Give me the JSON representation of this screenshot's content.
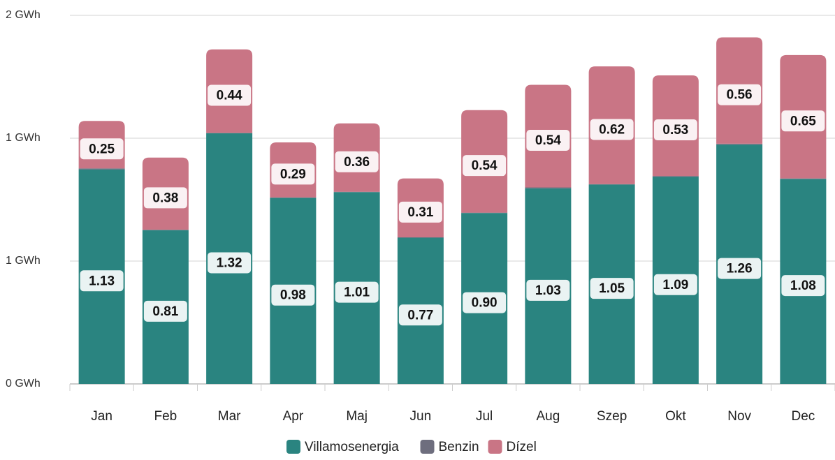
{
  "chart_data": {
    "type": "stacked_bar",
    "categories": [
      "Jan",
      "Feb",
      "Mar",
      "Apr",
      "Maj",
      "Jun",
      "Jul",
      "Aug",
      "Szep",
      "Okt",
      "Nov",
      "Dec"
    ],
    "series": [
      {
        "name": "Villamosenergia",
        "color": "#2a8480",
        "values": [
          1.13,
          0.81,
          1.32,
          0.98,
          1.01,
          0.77,
          0.9,
          1.03,
          1.05,
          1.09,
          1.26,
          1.08
        ],
        "value_labels": [
          "1.13",
          "0.81",
          "1.32",
          "0.98",
          "1.01",
          "0.77",
          "0.90",
          "1.03",
          "1.05",
          "1.09",
          "1.26",
          "1.08"
        ]
      },
      {
        "name": "Benzin",
        "color": "#6e6e7e",
        "values": [
          0.005,
          0.002,
          0.002,
          0.002,
          0.002,
          0.002,
          0.002,
          0.005,
          0.002,
          0.005,
          0.005,
          0.002
        ]
      },
      {
        "name": "Dízel",
        "color": "#c97585",
        "values": [
          0.25,
          0.38,
          0.44,
          0.29,
          0.36,
          0.31,
          0.54,
          0.54,
          0.62,
          0.53,
          0.56,
          0.65
        ],
        "value_labels": [
          "0.25",
          "0.38",
          "0.44",
          "0.29",
          "0.36",
          "0.31",
          "0.54",
          "0.54",
          "0.62",
          "0.53",
          "0.56",
          "0.65"
        ]
      }
    ],
    "ylim": [
      0,
      1.941
    ],
    "yticks": [
      {
        "value": 0,
        "label": "0 GWh"
      },
      {
        "value": 0.647,
        "label": "1 GWh"
      },
      {
        "value": 1.294,
        "label": "1 GWh"
      },
      {
        "value": 1.941,
        "label": "2 GWh"
      }
    ],
    "grid": true,
    "legend": "bottom"
  }
}
